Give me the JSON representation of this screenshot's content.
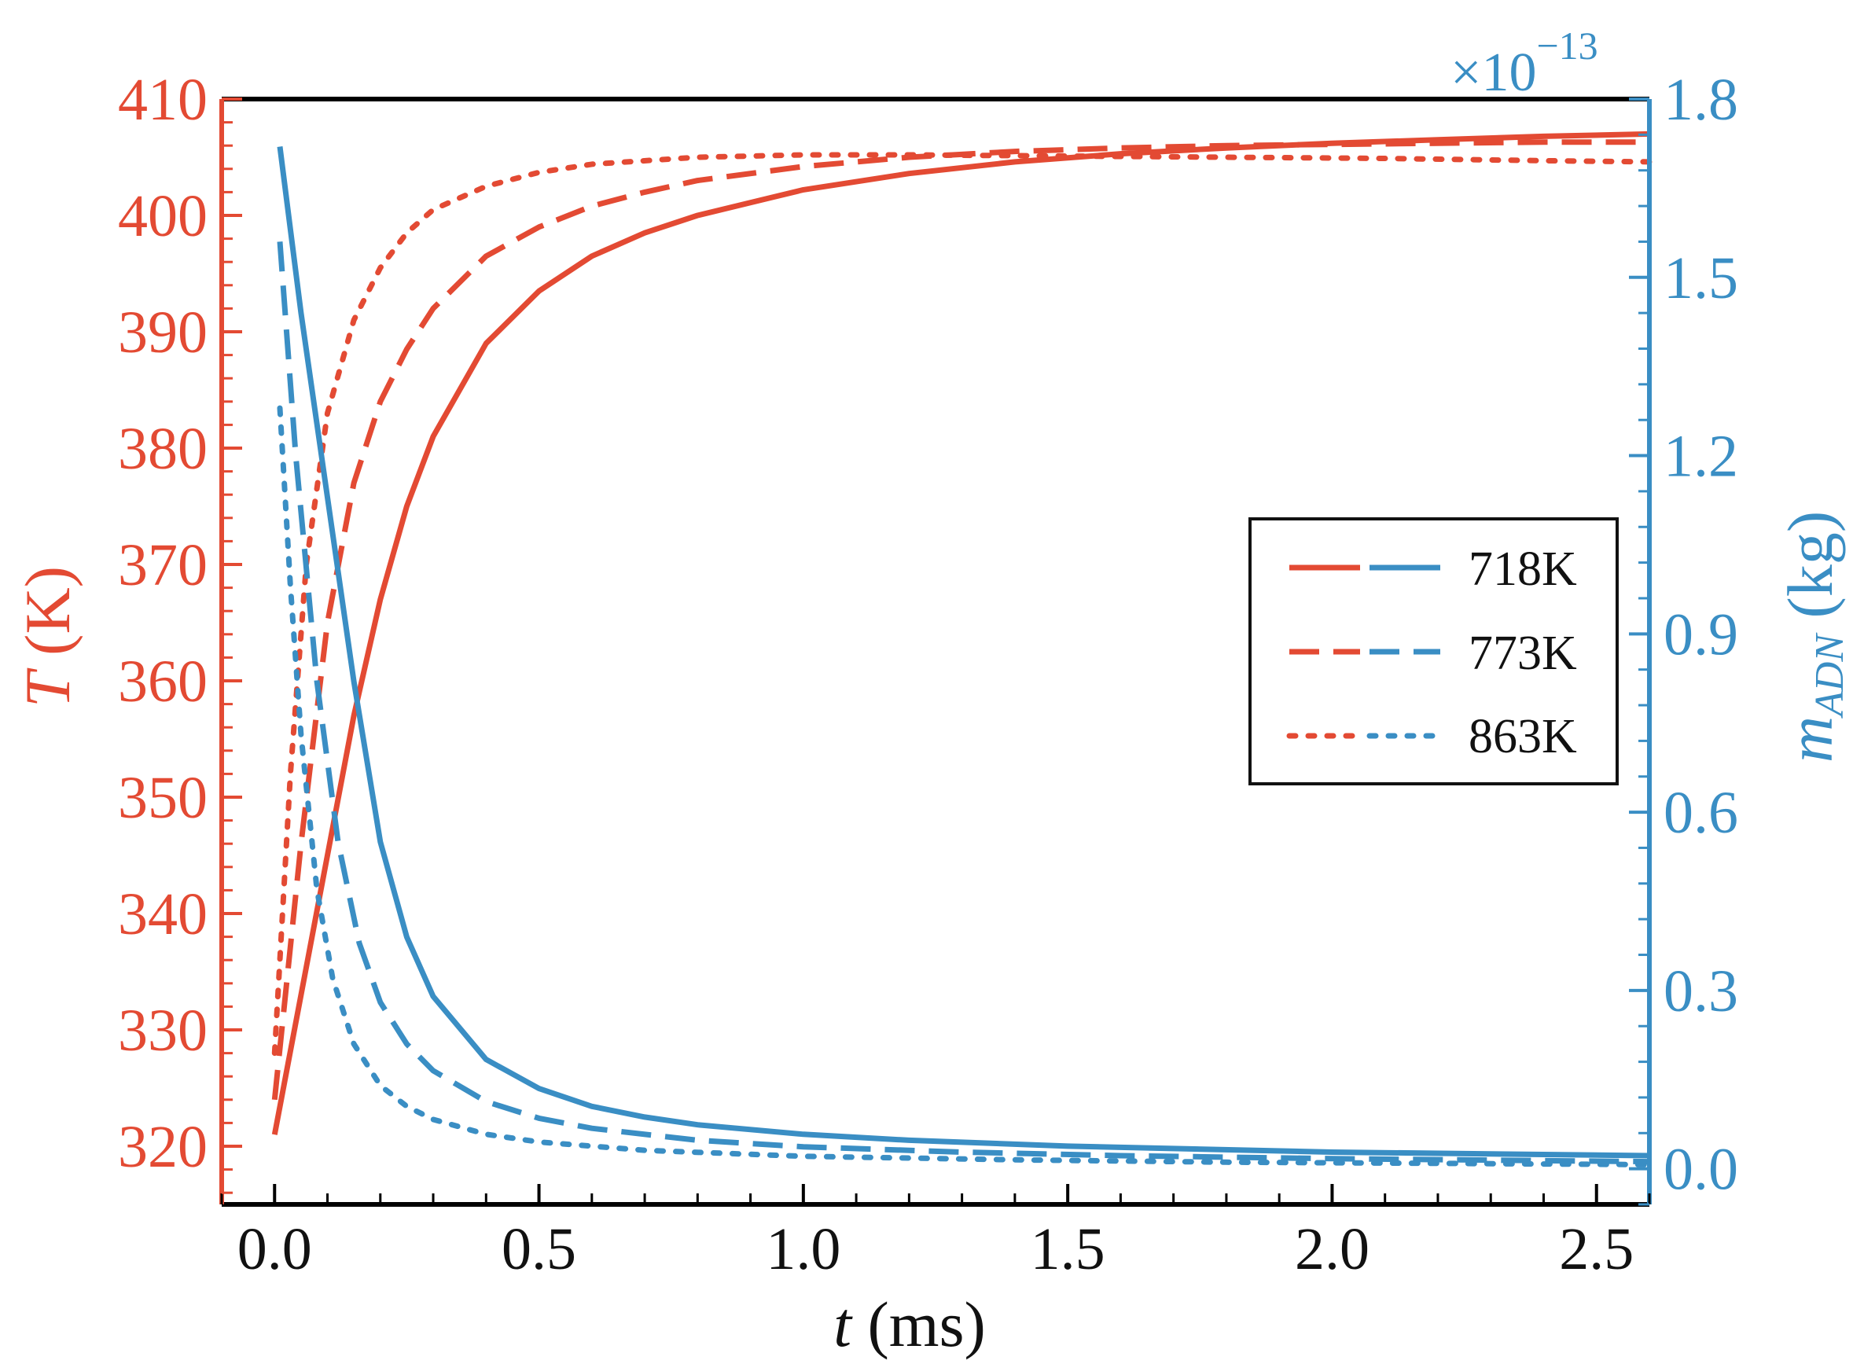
{
  "chart_data": {
    "type": "line",
    "x_axis": {
      "label_var": "t",
      "label_unit": " (ms)",
      "range": [
        -0.1,
        2.6
      ],
      "ticks": [
        0.0,
        0.5,
        1.0,
        1.5,
        2.0,
        2.5
      ],
      "tick_labels": [
        "0.0",
        "0.5",
        "1.0",
        "1.5",
        "2.0",
        "2.5"
      ],
      "minor_step": 0.1
    },
    "y_left": {
      "label_var": "T",
      "label_unit": " (K)",
      "range": [
        315,
        410
      ],
      "ticks": [
        320,
        330,
        340,
        350,
        360,
        370,
        380,
        390,
        400,
        410
      ],
      "tick_labels": [
        "320",
        "330",
        "340",
        "350",
        "360",
        "370",
        "380",
        "390",
        "400",
        "410"
      ],
      "minor_step": 2,
      "color": "#e34a33"
    },
    "y_right": {
      "label_var": "m",
      "label_sub": "ADN",
      "label_unit": " (kg)",
      "multiplier_base": "×10",
      "multiplier_exp": "−13",
      "range": [
        -0.06,
        1.8
      ],
      "ticks": [
        0.0,
        0.3,
        0.6,
        0.9,
        1.2,
        1.5,
        1.8
      ],
      "tick_labels": [
        "0.0",
        "0.3",
        "0.6",
        "0.9",
        "1.2",
        "1.5",
        "1.8"
      ],
      "minor_step": 0.06,
      "color": "#3a8ec4"
    },
    "legend": {
      "position": "center-right",
      "entries": [
        {
          "label": "718K",
          "style": "solid"
        },
        {
          "label": "773K",
          "style": "dashed"
        },
        {
          "label": "863K",
          "style": "dotted"
        }
      ]
    },
    "series": [
      {
        "name": "T 718K",
        "axis": "left",
        "style": "solid",
        "x": [
          0.0,
          0.05,
          0.1,
          0.15,
          0.2,
          0.25,
          0.3,
          0.4,
          0.5,
          0.6,
          0.7,
          0.8,
          1.0,
          1.2,
          1.4,
          1.6,
          1.8,
          2.0,
          2.2,
          2.4,
          2.6
        ],
        "y": [
          321,
          333,
          345,
          357,
          367,
          375,
          381,
          389,
          393.5,
          396.5,
          398.5,
          400,
          402.2,
          403.6,
          404.6,
          405.3,
          405.8,
          406.2,
          406.5,
          406.8,
          407.0
        ]
      },
      {
        "name": "T 773K",
        "axis": "left",
        "style": "dashed",
        "x": [
          0.0,
          0.05,
          0.1,
          0.15,
          0.2,
          0.25,
          0.3,
          0.4,
          0.5,
          0.6,
          0.7,
          0.8,
          1.0,
          1.2,
          1.4,
          1.6,
          1.8,
          2.0,
          2.2,
          2.4,
          2.6
        ],
        "y": [
          324,
          346,
          365,
          377,
          384,
          388.5,
          392,
          396.5,
          399,
          400.8,
          402,
          403,
          404.2,
          405,
          405.5,
          405.8,
          406.0,
          406.1,
          406.2,
          406.3,
          406.3
        ]
      },
      {
        "name": "T 863K",
        "axis": "left",
        "style": "dotted",
        "x": [
          0.0,
          0.03,
          0.06,
          0.1,
          0.15,
          0.2,
          0.25,
          0.3,
          0.4,
          0.5,
          0.6,
          0.8,
          1.0,
          1.2,
          1.5,
          1.8,
          2.1,
          2.4,
          2.6
        ],
        "y": [
          328,
          352,
          370,
          383,
          391,
          395.5,
          398.5,
          400.5,
          402.5,
          403.7,
          404.4,
          405.0,
          405.2,
          405.2,
          405.1,
          405.0,
          404.9,
          404.7,
          404.6
        ]
      },
      {
        "name": "m 718K",
        "axis": "right",
        "style": "solid",
        "x": [
          0.01,
          0.05,
          0.1,
          0.15,
          0.2,
          0.25,
          0.3,
          0.4,
          0.5,
          0.6,
          0.7,
          0.8,
          1.0,
          1.2,
          1.5,
          2.0,
          2.6
        ],
        "y": [
          1.72,
          1.44,
          1.13,
          0.82,
          0.55,
          0.39,
          0.29,
          0.184,
          0.135,
          0.105,
          0.087,
          0.074,
          0.058,
          0.048,
          0.038,
          0.028,
          0.022
        ]
      },
      {
        "name": "m 773K",
        "axis": "right",
        "style": "dashed",
        "x": [
          0.01,
          0.04,
          0.08,
          0.12,
          0.16,
          0.2,
          0.25,
          0.3,
          0.4,
          0.5,
          0.6,
          0.8,
          1.0,
          1.3,
          1.6,
          2.0,
          2.6
        ],
        "y": [
          1.56,
          1.2,
          0.82,
          0.55,
          0.38,
          0.28,
          0.21,
          0.165,
          0.113,
          0.085,
          0.068,
          0.048,
          0.037,
          0.028,
          0.022,
          0.017,
          0.012
        ]
      },
      {
        "name": "m 863K",
        "axis": "right",
        "style": "dotted",
        "x": [
          0.01,
          0.03,
          0.05,
          0.08,
          0.11,
          0.15,
          0.2,
          0.25,
          0.3,
          0.4,
          0.5,
          0.7,
          1.0,
          1.4,
          1.8,
          2.2,
          2.6
        ],
        "y": [
          1.28,
          0.98,
          0.73,
          0.47,
          0.32,
          0.21,
          0.14,
          0.105,
          0.083,
          0.058,
          0.045,
          0.031,
          0.021,
          0.015,
          0.011,
          0.009,
          0.007
        ]
      }
    ]
  }
}
